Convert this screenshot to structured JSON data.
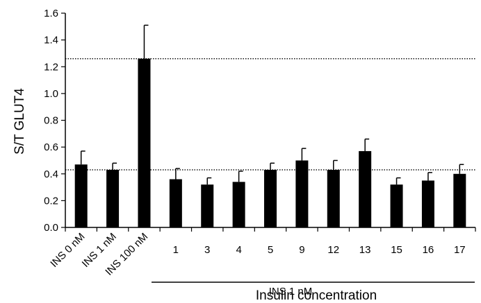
{
  "chart_data": {
    "type": "bar",
    "ylabel": "S/T GLUT4",
    "xlabel": "Insulin concentration",
    "group_label": "INS 1 nM",
    "ylim": [
      0,
      1.6
    ],
    "yticks": [
      "0.0",
      "0.2",
      "0.4",
      "0.6",
      "0.8",
      "1.0",
      "1.2",
      "1.4",
      "1.6"
    ],
    "categories": [
      "INS 0 nM",
      "INS 1 nM",
      "INS 100 nM",
      "1",
      "3",
      "4",
      "5",
      "9",
      "12",
      "13",
      "15",
      "16",
      "17"
    ],
    "rotated_categories": 3,
    "values": [
      0.47,
      0.43,
      1.26,
      0.36,
      0.32,
      0.34,
      0.43,
      0.5,
      0.43,
      0.57,
      0.32,
      0.35,
      0.4
    ],
    "errors": [
      0.1,
      0.05,
      0.25,
      0.08,
      0.05,
      0.08,
      0.05,
      0.09,
      0.07,
      0.09,
      0.05,
      0.06,
      0.07
    ],
    "reference_lines": [
      1.26,
      0.43
    ],
    "bar_color": "#000000",
    "grid": false,
    "legend": "none"
  }
}
